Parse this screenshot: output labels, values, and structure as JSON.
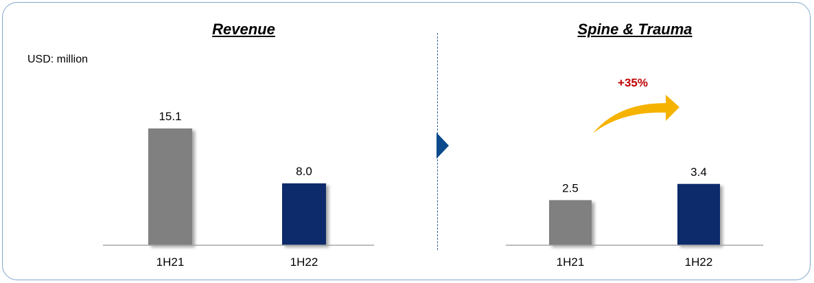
{
  "unit_label": "USD: million",
  "colors": {
    "prior": "#808080",
    "current": "#0a2a6b",
    "growth_text": "#c00000",
    "growth_arrow": "#f5b300",
    "divider": "#2e5c99"
  },
  "chart_data": [
    {
      "type": "bar",
      "title": "Revenue",
      "categories": [
        "1H21",
        "1H22"
      ],
      "values": [
        15.1,
        8.0
      ],
      "data_labels": [
        "15.1",
        "8.0"
      ],
      "ylim": [
        0,
        17.5
      ],
      "grid": false,
      "legend": "none"
    },
    {
      "type": "bar",
      "title": "Spine & Trauma",
      "categories": [
        "1H21",
        "1H22"
      ],
      "values": [
        2.5,
        3.4
      ],
      "data_labels": [
        "2.5",
        "3.4"
      ],
      "ylim": [
        0,
        5.6
      ],
      "grid": false,
      "legend": "none",
      "annotation": "+35%"
    }
  ]
}
